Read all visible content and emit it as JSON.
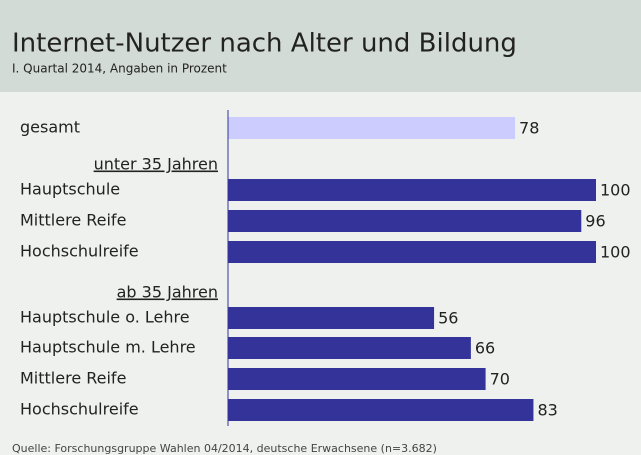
{
  "chart_data": {
    "type": "bar",
    "title": "Internet-Nutzer nach Alter und Bildung",
    "subtitle": "I. Quartal 2014, Angaben in Prozent",
    "source": "Quelle: Forschungsgruppe Wahlen 04/2014, deutsche Erwachsene (n=3.682)",
    "xlim": [
      0,
      100
    ],
    "rows": [
      {
        "category": "gesamt",
        "value": 78,
        "color": "#ccccff"
      },
      {
        "heading": "unter 35 Jahren"
      },
      {
        "category": "Hauptschule",
        "value": 100,
        "color": "#333399"
      },
      {
        "category": "Mittlere Reife",
        "value": 96,
        "color": "#333399"
      },
      {
        "category": "Hochschulreife",
        "value": 100,
        "color": "#333399"
      },
      {
        "heading": "ab 35 Jahren"
      },
      {
        "category": "Hauptschule o. Lehre",
        "value": 56,
        "color": "#333399"
      },
      {
        "category": "Hauptschule m. Lehre",
        "value": 66,
        "color": "#333399"
      },
      {
        "category": "Mittlere Reife",
        "value": 70,
        "color": "#333399"
      },
      {
        "category": "Hochschulreife",
        "value": 83,
        "color": "#333399"
      }
    ]
  }
}
